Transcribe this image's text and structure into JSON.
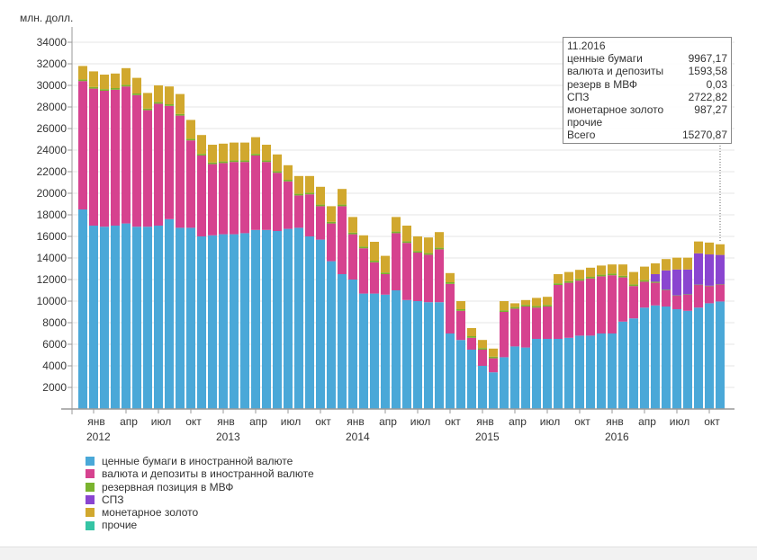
{
  "chart_data": {
    "type": "bar",
    "stacked": true,
    "unit_label": "млн. долл.",
    "ylim": [
      0,
      35000
    ],
    "yticks": [
      2000,
      4000,
      6000,
      8000,
      10000,
      12000,
      14000,
      16000,
      18000,
      20000,
      22000,
      24000,
      26000,
      28000,
      30000,
      32000,
      34000
    ],
    "grid": true,
    "legend_position": "bottom-left",
    "x": [
      "12.2011",
      "01.2012",
      "02.2012",
      "03.2012",
      "04.2012",
      "05.2012",
      "06.2012",
      "07.2012",
      "08.2012",
      "09.2012",
      "10.2012",
      "11.2012",
      "12.2012",
      "01.2013",
      "02.2013",
      "03.2013",
      "04.2013",
      "05.2013",
      "06.2013",
      "07.2013",
      "08.2013",
      "09.2013",
      "10.2013",
      "11.2013",
      "12.2013",
      "01.2014",
      "02.2014",
      "03.2014",
      "04.2014",
      "05.2014",
      "06.2014",
      "07.2014",
      "08.2014",
      "09.2014",
      "10.2014",
      "11.2014",
      "12.2014",
      "01.2015",
      "02.2015",
      "03.2015",
      "04.2015",
      "05.2015",
      "06.2015",
      "07.2015",
      "08.2015",
      "09.2015",
      "10.2015",
      "11.2015",
      "12.2015",
      "01.2016",
      "02.2016",
      "03.2016",
      "04.2016",
      "05.2016",
      "06.2016",
      "07.2016",
      "08.2016",
      "09.2016",
      "10.2016",
      "11.2016"
    ],
    "month_ticks": [
      {
        "index": 1,
        "label": "янв",
        "year": "2012"
      },
      {
        "index": 4,
        "label": "апр"
      },
      {
        "index": 7,
        "label": "июл"
      },
      {
        "index": 10,
        "label": "окт"
      },
      {
        "index": 13,
        "label": "янв",
        "year": "2013"
      },
      {
        "index": 16,
        "label": "апр"
      },
      {
        "index": 19,
        "label": "июл"
      },
      {
        "index": 22,
        "label": "окт"
      },
      {
        "index": 25,
        "label": "янв",
        "year": "2014"
      },
      {
        "index": 28,
        "label": "апр"
      },
      {
        "index": 31,
        "label": "июл"
      },
      {
        "index": 34,
        "label": "окт"
      },
      {
        "index": 37,
        "label": "янв",
        "year": "2015"
      },
      {
        "index": 40,
        "label": "апр"
      },
      {
        "index": 43,
        "label": "июл"
      },
      {
        "index": 46,
        "label": "окт"
      },
      {
        "index": 49,
        "label": "янв",
        "year": "2016"
      },
      {
        "index": 52,
        "label": "апр"
      },
      {
        "index": 55,
        "label": "июл"
      },
      {
        "index": 58,
        "label": "окт"
      }
    ],
    "series": [
      {
        "name": "ценные бумаги в иностранной валюте",
        "key": "securities",
        "color": "#4aa8d8",
        "values": [
          18500,
          17000,
          16900,
          17000,
          17200,
          16900,
          16900,
          17000,
          17600,
          16800,
          16800,
          16000,
          16100,
          16200,
          16200,
          16300,
          16600,
          16600,
          16500,
          16700,
          16800,
          16000,
          15700,
          13700,
          12500,
          12000,
          10700,
          10700,
          10600,
          11000,
          10100,
          10000,
          9900,
          9900,
          7000,
          6400,
          5500,
          4000,
          3400,
          4800,
          5800,
          5700,
          6500,
          6500,
          6500,
          6600,
          6800,
          6800,
          7000,
          7000,
          8100,
          8400,
          9400,
          9600,
          9500,
          9250,
          9100,
          9400,
          9800,
          9967.17
        ]
      },
      {
        "name": "валюта и депозиты в иностранной валюте",
        "key": "deposits",
        "color": "#d6428f",
        "values": [
          11900,
          12700,
          12600,
          12600,
          12700,
          12200,
          10800,
          11300,
          10500,
          10400,
          8100,
          7500,
          6600,
          6600,
          6700,
          6600,
          6900,
          6300,
          5400,
          4400,
          3000,
          3900,
          3100,
          3500,
          6300,
          4200,
          4200,
          2900,
          1900,
          5300,
          5300,
          4500,
          4400,
          4900,
          4600,
          2700,
          1100,
          1500,
          1300,
          4200,
          3500,
          3800,
          2900,
          3000,
          5000,
          5100,
          5100,
          5300,
          5300,
          5400,
          4100,
          3000,
          2400,
          2100,
          1500,
          1250,
          1500,
          2100,
          1600,
          1593.58
        ]
      },
      {
        "name": "резервная позиция в МВФ",
        "key": "imf",
        "color": "#7ab32e",
        "values": [
          150,
          150,
          150,
          150,
          150,
          150,
          150,
          150,
          150,
          150,
          150,
          150,
          150,
          150,
          150,
          150,
          150,
          150,
          150,
          150,
          150,
          150,
          150,
          150,
          150,
          150,
          150,
          150,
          150,
          150,
          150,
          150,
          150,
          150,
          150,
          150,
          150,
          150,
          150,
          150,
          150,
          150,
          150,
          150,
          150,
          150,
          150,
          150,
          150,
          150,
          150,
          150,
          150,
          100,
          50,
          30,
          30,
          30,
          30,
          0.03
        ]
      },
      {
        "name": "СПЗ",
        "key": "sdr",
        "color": "#8a45d0",
        "values": [
          0,
          0,
          0,
          0,
          0,
          0,
          0,
          0,
          0,
          0,
          0,
          0,
          0,
          0,
          0,
          0,
          0,
          0,
          0,
          0,
          0,
          0,
          0,
          0,
          0,
          0,
          0,
          0,
          0,
          0,
          0,
          0,
          0,
          0,
          0,
          0,
          0,
          0,
          0,
          0,
          0,
          0,
          0,
          0,
          0,
          0,
          0,
          0,
          0,
          0,
          0,
          0,
          0,
          700,
          1800,
          2400,
          2300,
          2900,
          2900,
          2722.82
        ]
      },
      {
        "name": "монетарное золото",
        "key": "gold",
        "color": "#d1a82e",
        "values": [
          1250,
          1450,
          1350,
          1350,
          1550,
          1450,
          1450,
          1550,
          1650,
          1850,
          1750,
          1750,
          1650,
          1650,
          1650,
          1650,
          1550,
          1450,
          1550,
          1350,
          1650,
          1550,
          1650,
          1450,
          1450,
          1450,
          1050,
          1750,
          1550,
          1350,
          1450,
          1350,
          1450,
          1450,
          850,
          750,
          750,
          750,
          750,
          850,
          350,
          450,
          750,
          750,
          850,
          850,
          850,
          850,
          850,
          850,
          1050,
          1150,
          1250,
          1000,
          1050,
          1100,
          1100,
          1100,
          1100,
          987.27
        ]
      },
      {
        "name": "прочие",
        "key": "other",
        "color": "#35c4a4",
        "values": [
          0,
          0,
          0,
          0,
          0,
          0,
          0,
          0,
          0,
          0,
          0,
          0,
          0,
          0,
          0,
          0,
          0,
          0,
          0,
          0,
          0,
          0,
          0,
          0,
          0,
          0,
          0,
          0,
          0,
          0,
          0,
          0,
          0,
          0,
          0,
          0,
          0,
          0,
          0,
          0,
          0,
          0,
          0,
          0,
          0,
          0,
          0,
          0,
          0,
          0,
          0,
          0,
          0,
          0,
          0,
          0,
          0,
          0,
          0,
          0
        ]
      }
    ]
  },
  "tooltip": {
    "date": "11.2016",
    "rows": [
      {
        "label": "ценные бумаги",
        "value": "9967,17"
      },
      {
        "label": "валюта и депозиты",
        "value": "1593,58"
      },
      {
        "label": "резерв в МВФ",
        "value": "0,03"
      },
      {
        "label": "СПЗ",
        "value": "2722,82"
      },
      {
        "label": "монетарное золото",
        "value": "987,27"
      },
      {
        "label": "прочие",
        "value": ""
      },
      {
        "label": "Всего",
        "value": "15270,87"
      }
    ]
  },
  "legend": [
    {
      "label": "ценные бумаги в иностранной валюте",
      "color": "#4aa8d8"
    },
    {
      "label": "валюта и депозиты в иностранной валюте",
      "color": "#d6428f"
    },
    {
      "label": "резервная позиция в МВФ",
      "color": "#7ab32e"
    },
    {
      "label": "СПЗ",
      "color": "#8a45d0"
    },
    {
      "label": "монетарное золото",
      "color": "#d1a82e"
    },
    {
      "label": "прочие",
      "color": "#35c4a4"
    }
  ]
}
